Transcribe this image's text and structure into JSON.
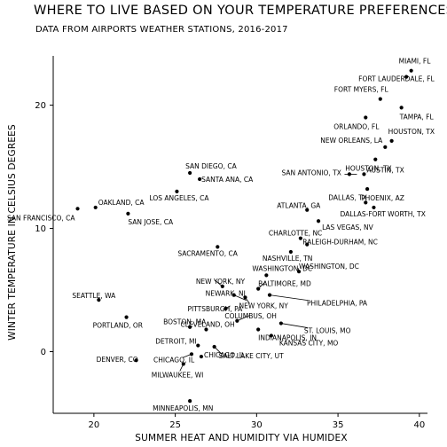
{
  "chart_data": {
    "type": "scatter",
    "title": "WHERE TO LIVE BASED ON YOUR TEMPERATURE PREFERENCES",
    "subtitle": "DATA FROM AIRPORTS WEATHER STATIONS, 2016-2017",
    "xlabel": "SUMMER HEAT AND HUMIDITY VIA HUMIDEX",
    "ylabel": "WINTER TEMPERATURE IN CELSIUS DEGREES",
    "xlim": [
      17.5,
      40.5
    ],
    "ylim": [
      -5,
      24
    ],
    "xticks": [
      20,
      25,
      30,
      35,
      40
    ],
    "yticks": [
      0,
      10,
      20
    ],
    "grid": false,
    "points": [
      {
        "label": "MIAMI, FL",
        "x": 39.5,
        "y": 22.8
      },
      {
        "label": "FORT LAUDERDALE, FL",
        "x": 39.2,
        "y": 22.3
      },
      {
        "label": "FORT MYERS, FL",
        "x": 37.6,
        "y": 20.5
      },
      {
        "label": "TAMPA, FL",
        "x": 38.9,
        "y": 19.8
      },
      {
        "label": "ORLANDO, FL",
        "x": 36.7,
        "y": 19.0
      },
      {
        "label": "HOUSTON, TX",
        "x": 38.3,
        "y": 17.1
      },
      {
        "label": "NEW ORLEANS, LA",
        "x": 37.9,
        "y": 16.6
      },
      {
        "label": "HOUSTON, TX",
        "x": 37.3,
        "y": 15.6
      },
      {
        "label": "SAN DIEGO, CA",
        "x": 25.9,
        "y": 14.5
      },
      {
        "label": "SANTA ANA, CA",
        "x": 26.5,
        "y": 14.0
      },
      {
        "label": "AUSTIN, TX",
        "x": 36.6,
        "y": 14.4
      },
      {
        "label": "SAN ANTONIO, TX",
        "x": 35.7,
        "y": 14.4
      },
      {
        "label": "PHOENIX, AZ",
        "x": 36.8,
        "y": 13.2
      },
      {
        "label": "LOS ANGELES, CA",
        "x": 25.1,
        "y": 13.0
      },
      {
        "label": "DALLAS, TX",
        "x": 36.7,
        "y": 12.1
      },
      {
        "label": "DALLAS-FORT WORTH, TX",
        "x": 37.2,
        "y": 11.7
      },
      {
        "label": "OAKLAND, CA",
        "x": 20.1,
        "y": 11.7
      },
      {
        "label": "SAN FRANCISCO, CA",
        "x": 19.0,
        "y": 11.6
      },
      {
        "label": "ATLANTA, GA",
        "x": 33.1,
        "y": 11.5
      },
      {
        "label": "SAN JOSE, CA",
        "x": 22.1,
        "y": 11.2
      },
      {
        "label": "LAS VEGAS, NV",
        "x": 33.8,
        "y": 10.6
      },
      {
        "label": "CHARLOTTE, NC",
        "x": 32.7,
        "y": 9.2
      },
      {
        "label": "RALEIGH-DURHAM, NC",
        "x": 33.1,
        "y": 8.7
      },
      {
        "label": "SACRAMENTO, CA",
        "x": 27.6,
        "y": 8.5
      },
      {
        "label": "NASHVILLE, TN",
        "x": 32.1,
        "y": 8.1
      },
      {
        "label": "WASHINGTON, DC",
        "x": 32.6,
        "y": 6.5
      },
      {
        "label": "WASHINGTON, DC",
        "x": 30.6,
        "y": 6.2
      },
      {
        "label": "NEW YORK, NY",
        "x": 27.9,
        "y": 5.3
      },
      {
        "label": "BALTIMORE, MD",
        "x": 30.1,
        "y": 5.1
      },
      {
        "label": "NEWARK, NJ",
        "x": 28.6,
        "y": 4.6
      },
      {
        "label": "PHILADELPHIA, PA",
        "x": 30.8,
        "y": 4.6
      },
      {
        "label": "SEATTLE, WA",
        "x": 20.3,
        "y": 4.2
      },
      {
        "label": "PITTSBURGH, PA",
        "x": 28.1,
        "y": 3.5
      },
      {
        "label": "NEW YORK, NY",
        "x": 29.3,
        "y": 4.4
      },
      {
        "label": "PORTLAND, OR",
        "x": 22.0,
        "y": 2.8
      },
      {
        "label": "BOSTON, MA",
        "x": 25.9,
        "y": 2.0
      },
      {
        "label": "COLUMBUS, OH",
        "x": 28.8,
        "y": 2.5
      },
      {
        "label": "ST. LOUIS, MO",
        "x": 31.5,
        "y": 2.3
      },
      {
        "label": "INDIANAPOLIS, IN",
        "x": 30.1,
        "y": 1.8
      },
      {
        "label": "CLEVELAND, OH",
        "x": 26.9,
        "y": 1.8
      },
      {
        "label": "KANSAS CITY, MO",
        "x": 30.9,
        "y": 1.3
      },
      {
        "label": "DETROIT, MI",
        "x": 26.4,
        "y": 0.5
      },
      {
        "label": "SALT LAKE CITY, UT",
        "x": 27.4,
        "y": 0.4
      },
      {
        "label": "DENVER, CO",
        "x": 22.6,
        "y": -0.7
      },
      {
        "label": "CHICAGO, IL",
        "x": 26.0,
        "y": -0.2
      },
      {
        "label": "CHICAGO, IL",
        "x": 26.6,
        "y": -0.4
      },
      {
        "label": "MILWAUKEE, WI",
        "x": 25.5,
        "y": -1.0
      },
      {
        "label": "MINNEAPOLIS, MN",
        "x": 25.9,
        "y": -4.0
      }
    ]
  }
}
